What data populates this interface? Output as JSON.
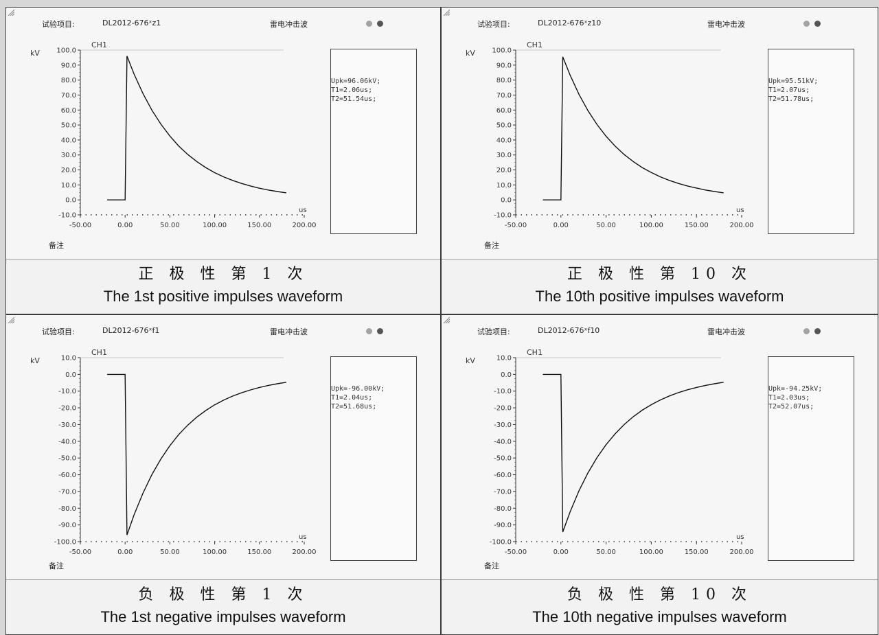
{
  "colors": {
    "trace": "#111111",
    "grid": "#c8c8c8",
    "dot_light": "#a3a3a3",
    "dot_dark": "#555555",
    "cell_border": "#3a3a3a",
    "background": "#d7d7d7"
  },
  "panels": [
    {
      "id": "pos-1",
      "test_item_label": "试验项目:",
      "test_item_value": "DL2012-676ˣz1",
      "wave_type": "雷电冲击波",
      "channel": "CH1",
      "y_unit": "kV",
      "x_unit": "us",
      "remark_label": "备注",
      "results": [
        "Upk=96.06kV;",
        "T1=2.06us;",
        "T2=51.54us;"
      ],
      "caption_cn": "正 极 性 第 1 次",
      "caption_en": "The 1st positive impulses waveform"
    },
    {
      "id": "pos-10",
      "test_item_label": "试验项目:",
      "test_item_value": "DL2012-676ˣz10",
      "wave_type": "雷电冲击波",
      "channel": "CH1",
      "y_unit": "kV",
      "x_unit": "us",
      "remark_label": "备注",
      "results": [
        "Upk=95.51kV;",
        "T1=2.07us;",
        "T2=51.78us;"
      ],
      "caption_cn": "正 极 性 第 10 次",
      "caption_en": "The 10th positive impulses waveform"
    },
    {
      "id": "neg-1",
      "test_item_label": "试验项目:",
      "test_item_value": "DL2012-676ˣf1",
      "wave_type": "雷电冲击波",
      "channel": "CH1",
      "y_unit": "kV",
      "x_unit": "us",
      "remark_label": "备注",
      "results": [
        "Upk=-96.00kV;",
        "T1=2.04us;",
        "T2=51.68us;"
      ],
      "caption_cn": "负 极 性 第 1 次",
      "caption_en": "The 1st negative impulses waveform"
    },
    {
      "id": "neg-10",
      "test_item_label": "试验项目:",
      "test_item_value": "DL2012-676ˣf10",
      "wave_type": "雷电冲击波",
      "channel": "CH1",
      "y_unit": "kV",
      "x_unit": "us",
      "remark_label": "备注",
      "results": [
        "Upk=-94.25kV;",
        "T1=2.03us;",
        "T2=52.07us;"
      ],
      "caption_cn": "负 极 性 第 10 次",
      "caption_en": "The 10th negative impulses waveform"
    }
  ],
  "chart_data": [
    {
      "type": "line",
      "title": "CH1",
      "xlabel": "us",
      "ylabel": "kV",
      "xlim": [
        -50,
        200
      ],
      "ylim": [
        -10,
        100
      ],
      "x_ticks": [
        "-50.00",
        "0.00",
        "50.00",
        "100.00",
        "150.00",
        "200.00"
      ],
      "y_ticks": [
        "-10.0",
        "0.0",
        "10.0",
        "20.0",
        "30.0",
        "40.0",
        "50.0",
        "60.0",
        "70.0",
        "80.0",
        "90.0",
        "100.0"
      ],
      "series": [
        {
          "x": [
            -20,
            0,
            2.06,
            10,
            20,
            30,
            40,
            50,
            60,
            70,
            80,
            90,
            100,
            110,
            120,
            130,
            140,
            150,
            160,
            170,
            180
          ],
          "y": [
            0,
            0,
            96.06,
            84.0,
            70.9,
            59.8,
            50.5,
            42.6,
            35.9,
            30.3,
            25.6,
            21.6,
            18.2,
            15.4,
            13.0,
            11.0,
            9.3,
            7.8,
            6.6,
            5.6,
            4.7
          ]
        }
      ]
    },
    {
      "type": "line",
      "title": "CH1",
      "xlabel": "us",
      "ylabel": "kV",
      "xlim": [
        -50,
        200
      ],
      "ylim": [
        -10,
        100
      ],
      "x_ticks": [
        "-50.00",
        "0.00",
        "50.00",
        "100.00",
        "150.00",
        "200.00"
      ],
      "y_ticks": [
        "-10.0",
        "0.0",
        "10.0",
        "20.0",
        "30.0",
        "40.0",
        "50.0",
        "60.0",
        "70.0",
        "80.0",
        "90.0",
        "100.0"
      ],
      "series": [
        {
          "x": [
            -20,
            0,
            2.07,
            10,
            20,
            30,
            40,
            50,
            60,
            70,
            80,
            90,
            100,
            110,
            120,
            130,
            140,
            150,
            160,
            170,
            180
          ],
          "y": [
            0,
            0,
            95.51,
            83.5,
            70.5,
            59.5,
            50.3,
            42.5,
            35.9,
            30.3,
            25.6,
            21.6,
            18.3,
            15.4,
            13.0,
            11.0,
            9.3,
            7.9,
            6.6,
            5.6,
            4.7
          ]
        }
      ]
    },
    {
      "type": "line",
      "title": "CH1",
      "xlabel": "us",
      "ylabel": "kV",
      "xlim": [
        -50,
        200
      ],
      "ylim": [
        -100,
        10
      ],
      "x_ticks": [
        "-50.00",
        "0.00",
        "50.00",
        "100.00",
        "150.00",
        "200.00"
      ],
      "y_ticks": [
        "10.0",
        "0.0",
        "-10.0",
        "-20.0",
        "-30.0",
        "-40.0",
        "-50.0",
        "-60.0",
        "-70.0",
        "-80.0",
        "-90.0",
        "-100.0"
      ],
      "series": [
        {
          "x": [
            -20,
            0,
            2.04,
            10,
            20,
            30,
            40,
            50,
            60,
            70,
            80,
            90,
            100,
            110,
            120,
            130,
            140,
            150,
            160,
            170,
            180
          ],
          "y": [
            0,
            0,
            -96.0,
            -84.0,
            -70.9,
            -59.8,
            -50.5,
            -42.6,
            -35.9,
            -30.3,
            -25.6,
            -21.6,
            -18.2,
            -15.4,
            -13.0,
            -11.0,
            -9.3,
            -7.8,
            -6.6,
            -5.6,
            -4.7
          ]
        }
      ]
    },
    {
      "type": "line",
      "title": "CH1",
      "xlabel": "us",
      "ylabel": "kV",
      "xlim": [
        -50,
        200
      ],
      "ylim": [
        -100,
        10
      ],
      "x_ticks": [
        "-50.00",
        "0.00",
        "50.00",
        "100.00",
        "150.00",
        "200.00"
      ],
      "y_ticks": [
        "10.0",
        "0.0",
        "-10.0",
        "-20.0",
        "-30.0",
        "-40.0",
        "-50.0",
        "-60.0",
        "-70.0",
        "-80.0",
        "-90.0",
        "-100.0"
      ],
      "series": [
        {
          "x": [
            -20,
            0,
            2.03,
            10,
            20,
            30,
            40,
            50,
            60,
            70,
            80,
            90,
            100,
            110,
            120,
            130,
            140,
            150,
            160,
            170,
            180
          ],
          "y": [
            0,
            0,
            -94.25,
            -82.4,
            -69.6,
            -58.8,
            -49.7,
            -42.0,
            -35.5,
            -30.0,
            -25.3,
            -21.4,
            -18.1,
            -15.3,
            -12.9,
            -10.9,
            -9.2,
            -7.8,
            -6.6,
            -5.6,
            -4.7
          ]
        }
      ]
    }
  ]
}
